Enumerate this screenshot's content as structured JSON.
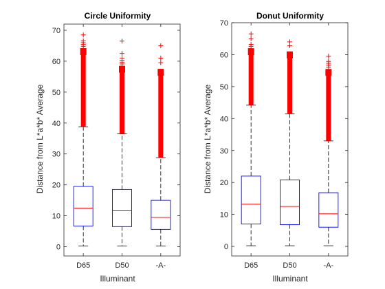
{
  "chart_data": [
    {
      "type": "box",
      "title": "Circle Uniformity",
      "xlabel": "Illuminant",
      "ylabel": "Distance from L*a*b* Average",
      "categories": [
        "D65",
        "D50",
        "-A-"
      ],
      "ylim": [
        -3,
        72
      ],
      "yticks": [
        0,
        10,
        20,
        30,
        40,
        50,
        60,
        70
      ],
      "boxes": [
        {
          "min": 0.2,
          "q1": 6.7,
          "median": 12.5,
          "q3": 19.5,
          "max": 38.8,
          "outlier_range": [
            38.8,
            64.2
          ],
          "outliers": [
            68.5
          ]
        },
        {
          "min": 0.2,
          "q1": 6.5,
          "median": 11.8,
          "q3": 18.5,
          "max": 36.5,
          "outlier_range": [
            36.5,
            58.5
          ],
          "outliers": [
            62.5,
            66.5
          ]
        },
        {
          "min": 0.2,
          "q1": 5.6,
          "median": 9.5,
          "q3": 15.0,
          "max": 28.8,
          "outlier_range": [
            28.8,
            57.5
          ],
          "outliers": [
            59.5,
            61.0,
            65.0
          ]
        }
      ]
    },
    {
      "type": "box",
      "title": "Donut Uniformity",
      "xlabel": "Illuminant",
      "ylabel": "Distance from L*a*b* Average",
      "categories": [
        "D65",
        "D50",
        "-A-"
      ],
      "ylim": [
        -3,
        70
      ],
      "yticks": [
        0,
        10,
        20,
        30,
        40,
        50,
        60,
        70
      ],
      "boxes": [
        {
          "min": 0.2,
          "q1": 7.0,
          "median": 13.2,
          "q3": 22.0,
          "max": 44.2,
          "outlier_range": [
            44.2,
            62.0
          ],
          "outliers": [
            65.0,
            66.5
          ]
        },
        {
          "min": 0.2,
          "q1": 6.8,
          "median": 12.5,
          "q3": 20.8,
          "max": 41.5,
          "outlier_range": [
            41.5,
            61.0
          ],
          "outliers": [
            62.8,
            64.0
          ]
        },
        {
          "min": 0.2,
          "q1": 6.0,
          "median": 10.2,
          "q3": 16.8,
          "max": 33.0,
          "outlier_range": [
            33.0,
            55.5
          ],
          "outliers": [
            59.5
          ]
        }
      ]
    }
  ],
  "colors": {
    "box": "#0000ff",
    "median": "#ff0000",
    "whisker": "#000000",
    "outlier": "#ff0000",
    "axis": "#262626"
  }
}
